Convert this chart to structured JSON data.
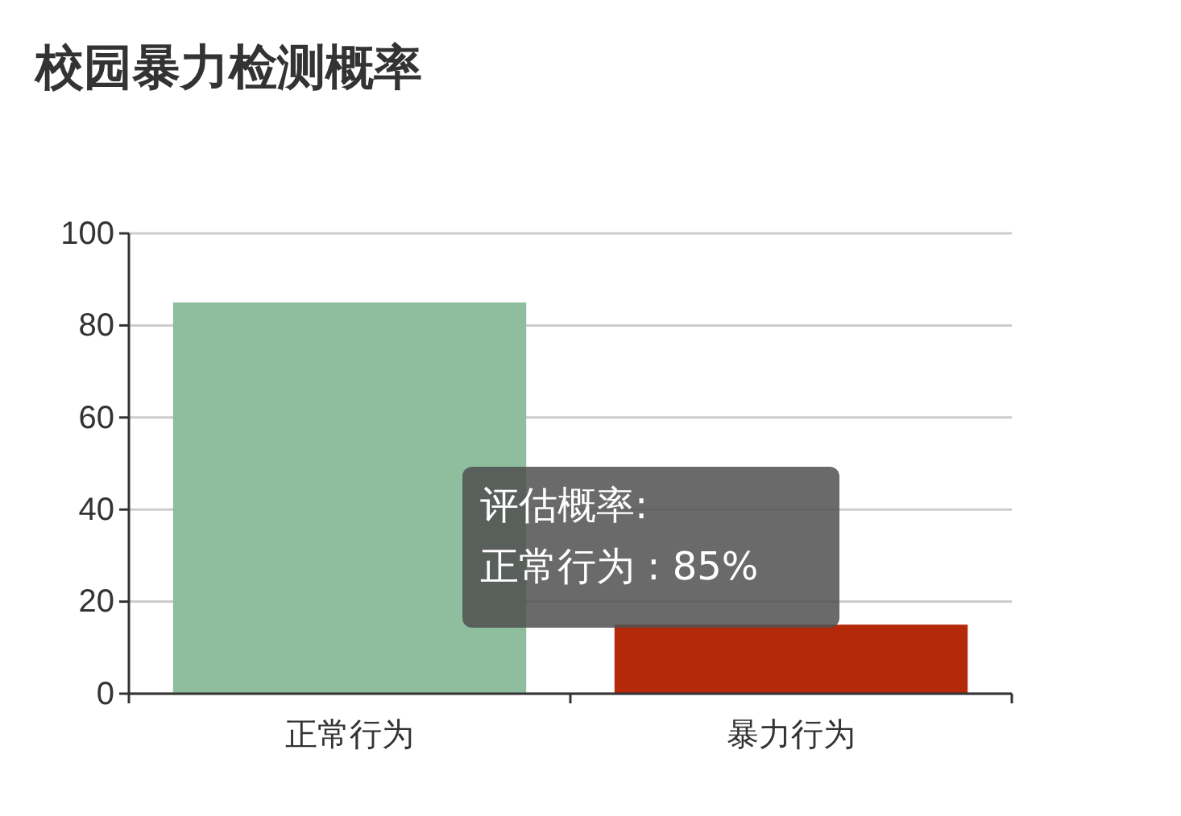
{
  "chart_data": {
    "type": "bar",
    "title": "校园暴力检测概率",
    "categories": [
      "正常行为",
      "暴力行为"
    ],
    "values": [
      85,
      15
    ],
    "colors": [
      "#8fbe9e",
      "#b5290b"
    ],
    "ylim": [
      0,
      100
    ],
    "yticks": [
      0,
      20,
      40,
      60,
      80,
      100
    ],
    "grid": "y",
    "annotations": [
      "评估概率:",
      "正常行为 : 85%"
    ]
  }
}
